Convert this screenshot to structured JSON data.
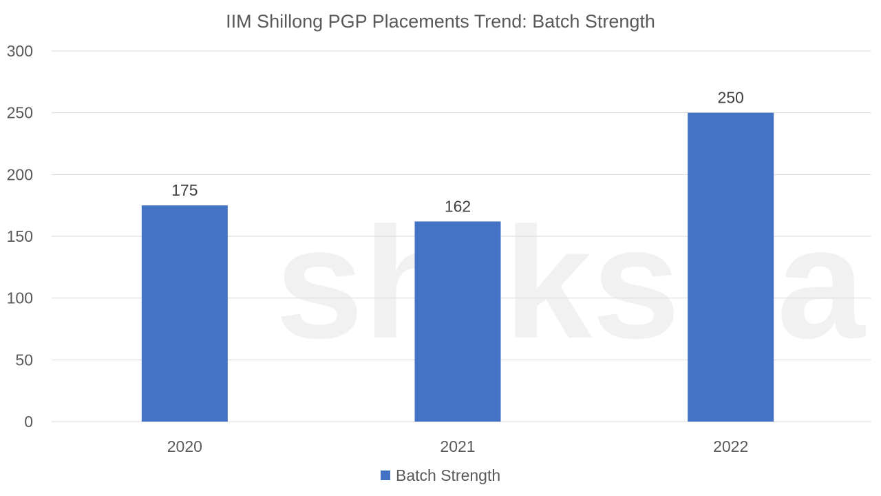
{
  "watermark": "shiksha",
  "colors": {
    "bar": "#4472C4",
    "grid": "#D9D9D9",
    "text": "#595959"
  },
  "chart_data": {
    "type": "bar",
    "title": "IIM Shillong PGP Placements Trend: Batch Strength",
    "categories": [
      "2020",
      "2021",
      "2022"
    ],
    "series": [
      {
        "name": "Batch Strength",
        "values": [
          175,
          162,
          250
        ]
      }
    ],
    "ylim": [
      0,
      300
    ],
    "yticks": [
      0,
      50,
      100,
      150,
      200,
      250,
      300
    ],
    "grid": true,
    "data_labels": true,
    "legend": "bottom",
    "xlabel": "",
    "ylabel": ""
  }
}
